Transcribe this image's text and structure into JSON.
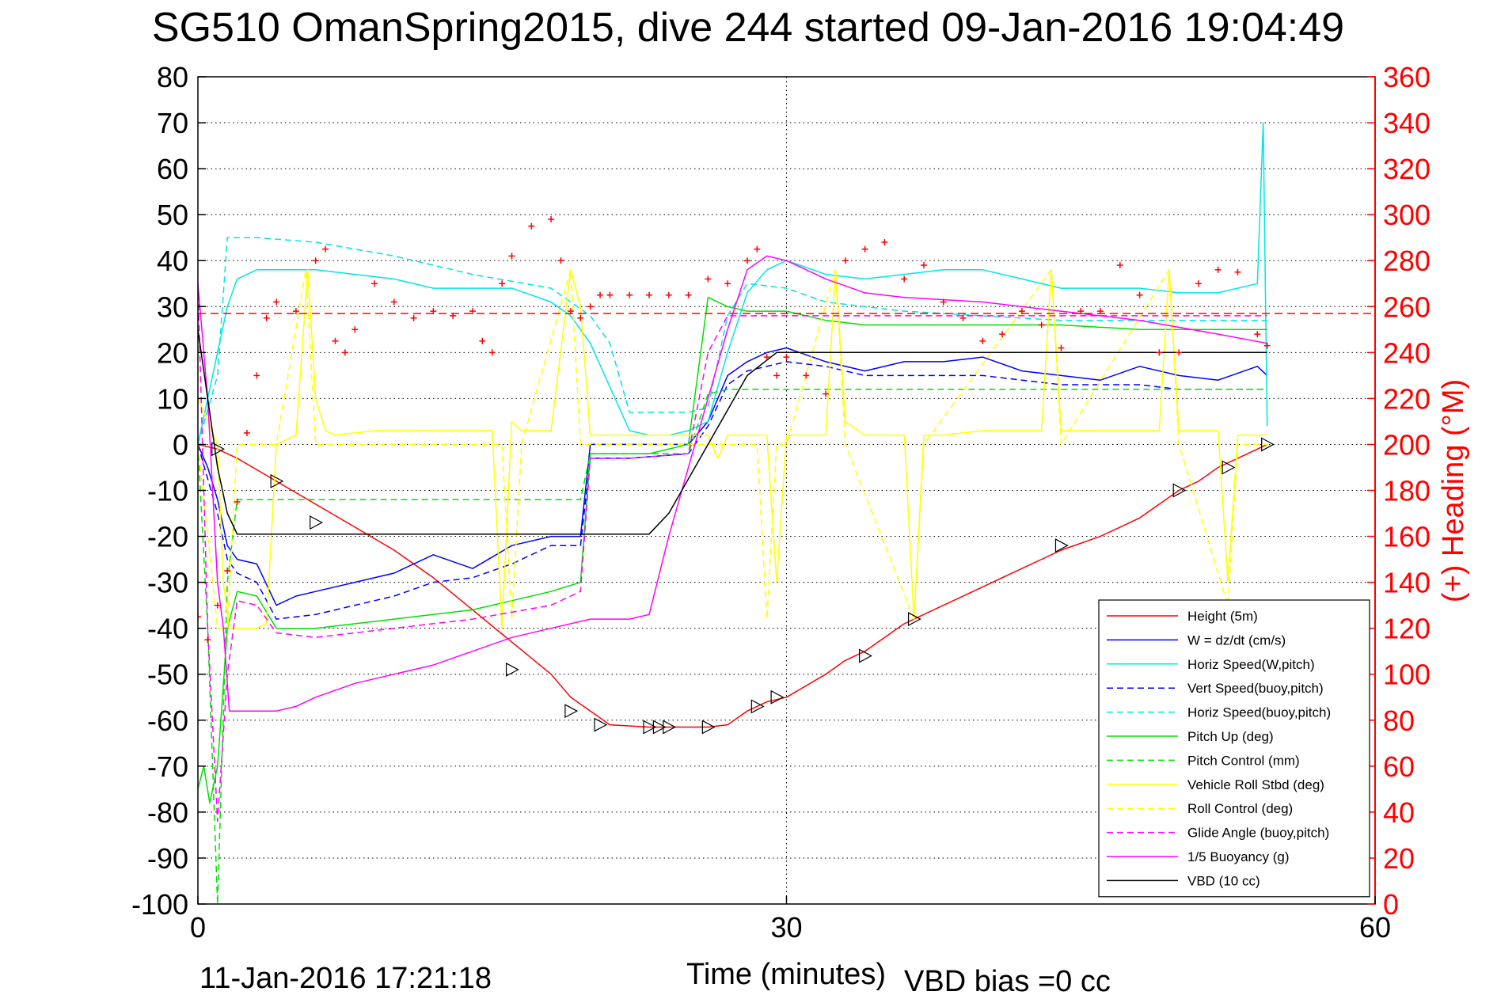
{
  "chart_data": {
    "type": "line",
    "title": "SG510 OmanSpring2015, dive 244 started 09-Jan-2016 19:04:49",
    "xlabel": "Time (minutes)",
    "ylabel": "",
    "y2label": "(+) Heading (°M)",
    "xlim": [
      0,
      60
    ],
    "ylim": [
      -100,
      80
    ],
    "y2lim": [
      0,
      360
    ],
    "xticks": [
      "0",
      "30",
      "60"
    ],
    "yticks": [
      "80",
      "70",
      "60",
      "50",
      "40",
      "30",
      "20",
      "10",
      "0",
      "-10",
      "-20",
      "-30",
      "-40",
      "-50",
      "-60",
      "-70",
      "-80",
      "-90",
      "-100"
    ],
    "y2ticks": [
      "360",
      "340",
      "320",
      "300",
      "280",
      "260",
      "240",
      "220",
      "200",
      "180",
      "160",
      "140",
      "120",
      "100",
      "80",
      "60",
      "40",
      "20",
      "0"
    ],
    "grid": true,
    "legend_position": "bottom-right",
    "footer_date": "11-Jan-2016 17:21:18",
    "footer_vbd": "VBD bias =0 cc",
    "colors": {
      "height": "#ff0000",
      "w": "#0000ff",
      "cyan": "#00e5e5",
      "pitch": "#00e000",
      "roll": "#ffff00",
      "glide": "#ff00ff",
      "buoyancy": "#ff00ff",
      "vbd": "#000000",
      "heading": "#ff0000",
      "axis2": "#ff0000"
    },
    "series": [
      {
        "name": "Height (5m)",
        "key": "height",
        "style": "solid",
        "x": [
          0,
          1,
          2,
          4,
          6,
          8,
          10,
          12,
          14,
          16,
          18,
          19,
          20,
          21,
          23,
          24,
          25,
          26,
          27,
          28,
          29,
          30,
          32,
          33,
          34,
          36,
          38,
          40,
          42,
          44,
          46,
          48,
          49,
          50,
          51,
          52,
          53,
          54,
          54.5
        ],
        "y": [
          0,
          -1,
          -3,
          -8,
          -13,
          -18,
          -23,
          -29,
          -36,
          -43,
          -50,
          -55,
          -58,
          -61,
          -61.5,
          -61.5,
          -61.5,
          -61.5,
          -61,
          -58,
          -56,
          -55,
          -50,
          -47,
          -45,
          -39,
          -35,
          -31,
          -27,
          -23,
          -20,
          -16,
          -13,
          -10,
          -8,
          -5,
          -3,
          -1,
          0
        ]
      },
      {
        "name": "W = dz/dt (cm/s)",
        "key": "w",
        "style": "solid",
        "x": [
          0,
          0.5,
          1,
          1.5,
          2,
          3,
          4,
          5,
          6,
          8,
          10,
          12,
          14,
          16,
          18,
          19.5,
          20,
          21,
          23,
          25,
          26,
          27,
          28,
          29,
          30,
          32,
          34,
          36,
          38,
          40,
          42,
          44,
          46,
          48,
          50,
          52,
          54,
          54.5
        ],
        "y": [
          0,
          -5,
          -12,
          -22,
          -25,
          -26,
          -35,
          -33,
          -32,
          -30,
          -28,
          -24,
          -27,
          -22,
          -20,
          -20,
          0,
          0,
          0,
          0,
          5,
          15,
          18,
          20,
          21,
          18,
          16,
          18,
          18,
          19,
          16,
          15,
          14,
          17,
          15,
          14,
          17,
          15
        ]
      },
      {
        "name": "Horiz Speed(W,pitch)",
        "key": "cyan",
        "style": "solid",
        "x": [
          0,
          0.5,
          1,
          1.5,
          2,
          3,
          4,
          6,
          8,
          10,
          12,
          14,
          16,
          18,
          19,
          20,
          22,
          23,
          24,
          25,
          26,
          27,
          28,
          29,
          30,
          32,
          34,
          36,
          38,
          40,
          42,
          44,
          46,
          48,
          50,
          52,
          54,
          54.3,
          54.5
        ],
        "y": [
          0,
          10,
          20,
          30,
          36,
          38,
          38,
          38,
          37,
          36,
          34,
          34,
          34,
          31,
          28,
          22,
          3,
          2,
          2,
          3,
          5,
          20,
          33,
          38,
          40,
          37,
          36,
          37,
          38,
          38,
          36,
          34,
          34,
          34,
          33,
          33,
          35,
          70,
          4
        ]
      },
      {
        "name": "Vert Speed(buoy,pitch)",
        "key": "w",
        "style": "dashed",
        "x": [
          0,
          1,
          1.5,
          2,
          3,
          4,
          6,
          8,
          10,
          12,
          14,
          16,
          18,
          19.5,
          20,
          22,
          25,
          26,
          27,
          28,
          30,
          32,
          34,
          36,
          38,
          40,
          42,
          44,
          46,
          48,
          50,
          52,
          54.5
        ],
        "y": [
          0,
          -15,
          -25,
          -28,
          -30,
          -38,
          -37,
          -35,
          -33,
          -30,
          -29,
          -26,
          -22,
          -22,
          -3,
          -3,
          -2,
          4,
          13,
          16,
          18,
          17,
          15,
          15,
          15,
          15,
          14,
          13,
          13,
          13,
          12,
          12,
          12
        ]
      },
      {
        "name": "Horiz Speed(buoy,pitch)",
        "key": "cyan",
        "style": "dashed",
        "x": [
          0,
          1,
          1.5,
          3,
          6,
          10,
          14,
          18,
          20,
          21,
          22,
          25,
          26,
          27,
          28,
          30,
          32,
          34,
          36,
          40,
          44,
          48,
          52,
          54.5
        ],
        "y": [
          0,
          15,
          45,
          45,
          44,
          41,
          37,
          34,
          28,
          22,
          7,
          7,
          8,
          28,
          35,
          34,
          31,
          30,
          29,
          28,
          27,
          27,
          27,
          27
        ]
      },
      {
        "name": "Pitch Up (deg)",
        "key": "pitch",
        "style": "solid",
        "x": [
          0,
          0.3,
          0.6,
          1,
          1.5,
          2,
          3,
          4,
          6,
          10,
          14,
          18,
          19.5,
          20,
          21,
          22,
          23,
          25,
          26,
          27,
          28,
          30,
          32,
          34,
          36,
          40,
          44,
          48,
          52,
          54.5
        ],
        "y": [
          -75,
          -70,
          -78,
          -70,
          -40,
          -32,
          -33,
          -40,
          -40,
          -38,
          -36,
          -32,
          -30,
          -2,
          -2,
          -2,
          -2,
          0,
          32,
          30,
          29,
          29,
          27,
          26,
          26,
          26,
          26,
          25,
          25,
          25
        ]
      },
      {
        "name": "Pitch Control (mm)",
        "key": "pitch",
        "style": "dashed",
        "x": [
          0,
          0.5,
          1,
          1.5,
          2,
          19.5,
          20,
          21,
          22,
          25,
          26,
          27,
          28,
          30,
          32,
          40,
          48,
          54.5
        ],
        "y": [
          0,
          -40,
          -100,
          -30,
          -12,
          -12,
          -2,
          -2,
          -2,
          -2,
          11,
          12,
          12,
          12,
          12,
          12,
          12,
          12
        ]
      },
      {
        "name": "Vehicle Roll Stbd (deg)",
        "key": "roll",
        "style": "solid",
        "x": [
          0,
          1,
          1.3,
          1.6,
          2,
          3,
          3.5,
          4,
          5,
          5.6,
          6,
          6.5,
          7,
          9,
          12,
          15,
          15.5,
          16,
          16.5,
          18,
          19,
          19.5,
          20,
          22,
          24,
          25,
          26,
          26.5,
          27,
          28,
          29,
          29.5,
          30,
          32,
          32.5,
          33,
          34,
          36,
          36.5,
          37,
          38,
          40,
          42,
          43,
          43.5,
          44,
          46,
          49,
          49.5,
          50,
          52,
          52.5,
          53,
          54,
          54.5
        ],
        "y": [
          10,
          0,
          -30,
          -40,
          -40,
          -40,
          -39,
          0,
          2,
          38,
          10,
          3,
          2,
          3,
          3,
          3,
          -40,
          5,
          3,
          3,
          38,
          30,
          2,
          2,
          2,
          2,
          2,
          -3,
          2,
          2,
          2,
          -30,
          2,
          2,
          38,
          5,
          2,
          2,
          -38,
          2,
          2,
          3,
          3,
          3,
          38,
          3,
          3,
          3,
          38,
          3,
          3,
          -30,
          2,
          2,
          2
        ]
      },
      {
        "name": "Roll Control (deg)",
        "key": "roll",
        "style": "dashed",
        "x": [
          0,
          1,
          1.5,
          2,
          3.5,
          4,
          5.5,
          6,
          6.5,
          15.5,
          16,
          16.5,
          19,
          19.5,
          20,
          28.5,
          29,
          29.5,
          30,
          32.5,
          33,
          36.5,
          37,
          43.5,
          44,
          49.5,
          50,
          52.5,
          53,
          54.5
        ],
        "y": [
          0,
          -40,
          -40,
          0,
          0,
          0,
          38,
          0,
          0,
          0,
          -38,
          0,
          38,
          0,
          0,
          0,
          -38,
          0,
          0,
          38,
          0,
          -38,
          0,
          38,
          0,
          38,
          0,
          -35,
          0,
          0
        ]
      },
      {
        "name": "Glide Angle (buoy,pitch)",
        "key": "glide",
        "style": "dashed",
        "x": [
          0,
          0.5,
          1,
          1.5,
          2,
          3,
          4,
          6,
          10,
          14,
          18,
          19.5,
          20,
          22,
          25,
          26,
          27,
          28,
          30,
          32,
          34,
          36,
          40,
          44,
          48,
          52,
          54.5
        ],
        "y": [
          35,
          -40,
          -82,
          -50,
          -34,
          -35,
          -41,
          -42,
          -40,
          -38,
          -35,
          -32,
          -3,
          -3,
          -2,
          20,
          28,
          28,
          28,
          28,
          28,
          28,
          28,
          28,
          28,
          28,
          28
        ]
      },
      {
        "name": "1/5 Buoyancy (g)",
        "key": "buoyancy",
        "style": "solid",
        "x": [
          0,
          0.5,
          1,
          1.3,
          1.6,
          4,
          5,
          6,
          8,
          10,
          12,
          14,
          16,
          18,
          20,
          22,
          23,
          24,
          25,
          26,
          27,
          28,
          29,
          30,
          32,
          34,
          36,
          40,
          44,
          48,
          52,
          54.5
        ],
        "y": [
          35,
          10,
          -30,
          -40,
          -58,
          -58,
          -57,
          -55,
          -52,
          -50,
          -48,
          -45,
          -42,
          -40,
          -38,
          -38,
          -37,
          -20,
          -5,
          10,
          25,
          38,
          41,
          40,
          36,
          33,
          32,
          31,
          29,
          27,
          24,
          22
        ]
      },
      {
        "name": "VBD (10 cc)",
        "key": "vbd",
        "style": "solid",
        "x": [
          0,
          0.5,
          1,
          1.5,
          2,
          23,
          24,
          26,
          28,
          29.5,
          30,
          40,
          54.5
        ],
        "y": [
          25,
          10,
          -5,
          -15,
          -19.5,
          -19.5,
          -15,
          0,
          15,
          20,
          20,
          20,
          20
        ]
      }
    ],
    "heading_series": {
      "name": "(+) Heading",
      "axis": "right",
      "reference_value": 257,
      "x": [
        0,
        0.5,
        1,
        1.5,
        2,
        2.5,
        3,
        3.5,
        4,
        5,
        6,
        6.5,
        7,
        7.5,
        8,
        9,
        10,
        11,
        12,
        13,
        14,
        14.5,
        15,
        15.5,
        16,
        17,
        18,
        18.5,
        19,
        19.5,
        20,
        20.5,
        21,
        22,
        23,
        24,
        25,
        26,
        27,
        28,
        28.5,
        29,
        29.5,
        30,
        31,
        32,
        33,
        34,
        35,
        36,
        37,
        38,
        39,
        40,
        41,
        42,
        43,
        44,
        45,
        46,
        47,
        48,
        49,
        50,
        51,
        52,
        53,
        54,
        54.5
      ],
      "y": [
        125,
        115,
        130,
        145,
        175,
        205,
        230,
        255,
        262,
        258,
        280,
        285,
        245,
        240,
        250,
        270,
        262,
        255,
        258,
        256,
        258,
        245,
        240,
        270,
        282,
        295,
        298,
        280,
        258,
        255,
        260,
        265,
        265,
        265,
        265,
        265,
        265,
        272,
        270,
        280,
        285,
        238,
        230,
        238,
        230,
        222,
        280,
        285,
        288,
        272,
        278,
        262,
        255,
        245,
        248,
        258,
        252,
        242,
        258,
        258,
        278,
        265,
        240,
        240,
        270,
        276,
        275,
        248,
        243
      ]
    },
    "height_markers": {
      "x": [
        1,
        4,
        6,
        16,
        19,
        20.5,
        23,
        23.5,
        24,
        26,
        28.5,
        29.5,
        34,
        36.5,
        44,
        50,
        52.5,
        54.5
      ],
      "y": [
        -1,
        -8,
        -17,
        -49,
        -58,
        -61,
        -61.5,
        -61.5,
        -61.5,
        -61.5,
        -57,
        -55,
        -46,
        -38,
        -22,
        -10,
        -5,
        0
      ]
    }
  }
}
